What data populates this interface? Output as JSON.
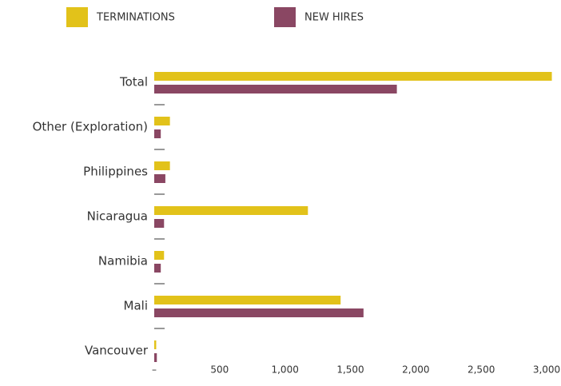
{
  "chart_data": {
    "type": "hbar",
    "categories": [
      "Total",
      "Other (Exploration)",
      "Philippines",
      "Nicaragua",
      "Namibia",
      "Mali",
      "Vancouver"
    ],
    "series": [
      {
        "name": "TERMINATIONS",
        "color": "#e2c21a",
        "values": [
          3040,
          120,
          120,
          1175,
          75,
          1425,
          15
        ]
      },
      {
        "name": "NEW HIRES",
        "color": "#8a4763",
        "values": [
          1855,
          50,
          85,
          75,
          50,
          1600,
          20
        ]
      }
    ],
    "xlim": [
      0,
      3000
    ],
    "xticks": [
      {
        "value": 0,
        "label": "–"
      },
      500,
      {
        "value": 1000,
        "label": "1,000"
      },
      {
        "value": 1500,
        "label": "1,500"
      },
      {
        "value": 2000,
        "label": "2,000"
      },
      {
        "value": 2500,
        "label": "2,500"
      },
      {
        "value": 3000,
        "label": "3,000"
      }
    ],
    "legend": "top"
  }
}
